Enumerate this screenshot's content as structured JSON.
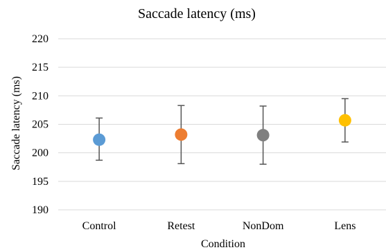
{
  "chart_data": {
    "type": "scatter",
    "title": "Saccade latency (ms)",
    "xlabel": "Condition",
    "ylabel": "Saccade latency (ms)",
    "ylim": [
      190,
      220
    ],
    "yticks": [
      190,
      195,
      200,
      205,
      210,
      215,
      220
    ],
    "grid": true,
    "legend": "none",
    "categories": [
      "Control",
      "Retest",
      "NonDom",
      "Lens"
    ],
    "values": [
      202.3,
      203.2,
      203.1,
      205.7
    ],
    "error_low": [
      198.7,
      198.1,
      198.0,
      201.9
    ],
    "error_high": [
      206.1,
      208.3,
      208.2,
      209.5
    ],
    "colors": [
      "#5b9bd5",
      "#ed7d31",
      "#7f7f7f",
      "#ffc000"
    ]
  }
}
